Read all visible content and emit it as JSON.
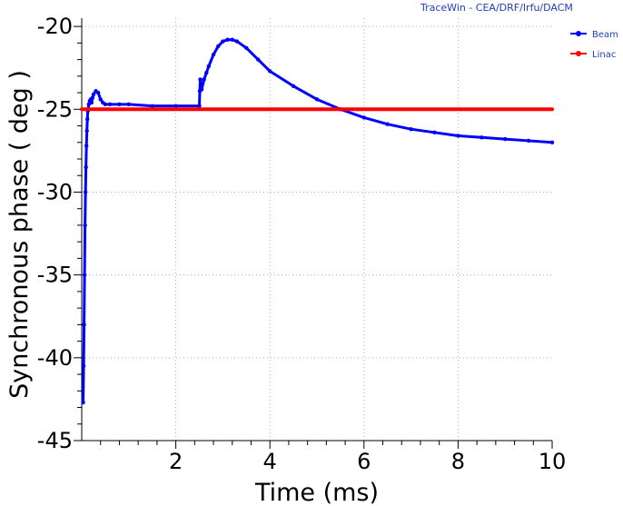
{
  "credit": "TraceWin - CEA/DRF/Irfu/DACM",
  "chart_data": {
    "type": "line",
    "xlabel": "Time (ms)",
    "ylabel": "Synchronous phase ( deg )",
    "xlim": [
      0,
      10
    ],
    "ylim": [
      -45,
      -19.5
    ],
    "xticks": [
      2,
      4,
      6,
      8,
      10
    ],
    "yticks": [
      -20,
      -25,
      -30,
      -35,
      -40,
      -45
    ],
    "grid": "dotted",
    "legend_position": "top-right",
    "series": [
      {
        "name": "Beam",
        "color": "#0000ff",
        "marker": "circle",
        "x": [
          0.03,
          0.04,
          0.05,
          0.06,
          0.07,
          0.08,
          0.09,
          0.1,
          0.11,
          0.12,
          0.13,
          0.15,
          0.17,
          0.19,
          0.21,
          0.23,
          0.25,
          0.3,
          0.35,
          0.4,
          0.45,
          0.5,
          0.6,
          0.8,
          1.0,
          1.5,
          2.0,
          2.5,
          2.51,
          2.52,
          2.55,
          2.6,
          2.65,
          2.7,
          2.8,
          2.9,
          3.0,
          3.1,
          3.2,
          3.3,
          3.5,
          3.75,
          4.0,
          4.5,
          5.0,
          5.5,
          6.0,
          6.5,
          7.0,
          7.5,
          8.0,
          8.5,
          9.0,
          9.5,
          10.0
        ],
        "y": [
          -42.7,
          -40.5,
          -38.0,
          -35.0,
          -32.0,
          -30.0,
          -28.5,
          -27.2,
          -26.3,
          -25.6,
          -25.1,
          -24.7,
          -24.5,
          -24.4,
          -24.6,
          -24.3,
          -24.1,
          -23.9,
          -24.0,
          -24.4,
          -24.6,
          -24.7,
          -24.7,
          -24.7,
          -24.7,
          -24.8,
          -24.8,
          -24.8,
          -23.9,
          -23.2,
          -23.8,
          -23.2,
          -22.8,
          -22.4,
          -21.7,
          -21.2,
          -20.9,
          -20.8,
          -20.8,
          -20.9,
          -21.3,
          -22.0,
          -22.7,
          -23.6,
          -24.4,
          -25.0,
          -25.5,
          -25.9,
          -26.2,
          -26.4,
          -26.6,
          -26.7,
          -26.8,
          -26.9,
          -27.0
        ]
      },
      {
        "name": "Linac",
        "color": "#ff0000",
        "marker": "circle",
        "x": [
          0,
          10
        ],
        "y": [
          -25,
          -25
        ]
      }
    ]
  }
}
